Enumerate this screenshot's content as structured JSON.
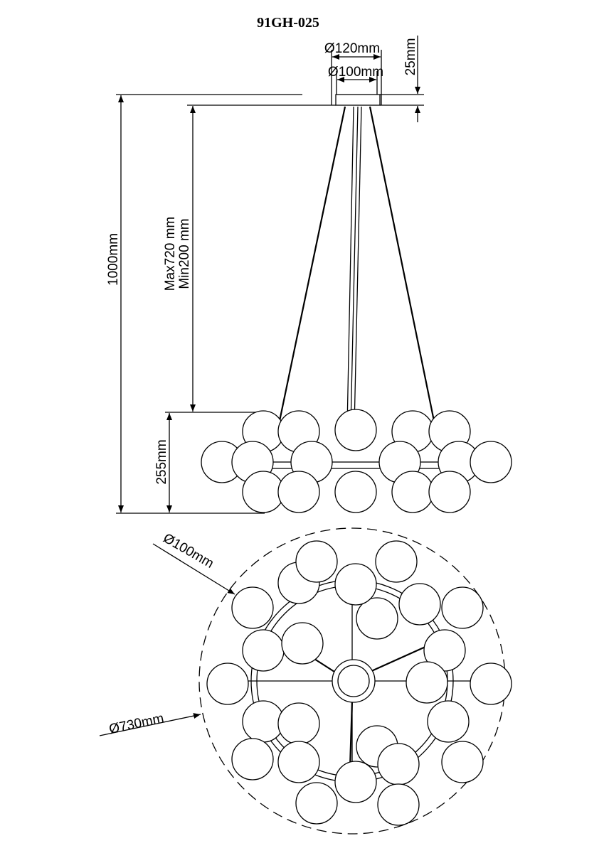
{
  "title": "91GH-025",
  "dimensions": {
    "canopy_outer": "Ø120mm",
    "canopy_inner": "Ø100mm",
    "canopy_height": "25mm",
    "total_height": "1000mm",
    "cable_max": "Max720 mm",
    "cable_min": "Min200 mm",
    "body_height": "255mm",
    "globe_diameter": "Ø100mm",
    "overall_diameter": "Ø730mm"
  }
}
